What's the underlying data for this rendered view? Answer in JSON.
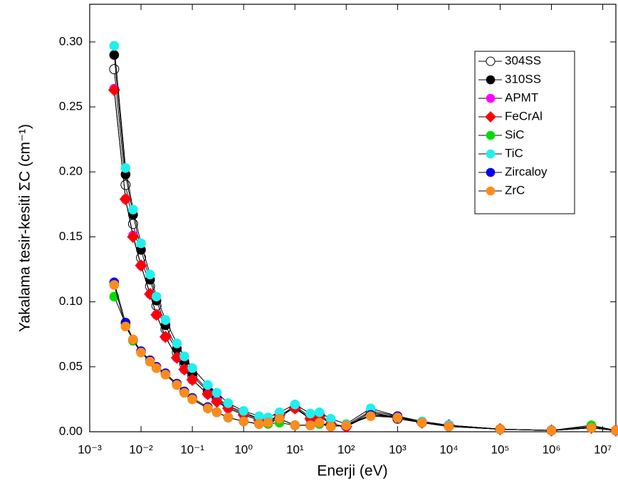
{
  "chart_data": {
    "type": "scatter-line",
    "x_label": "Enerji (eV)",
    "y_label": "Yakalama tesir-kesiti ΣC (cm⁻¹)",
    "log_x": true,
    "xlim": [
      0.001,
      18000000
    ],
    "ylim": [
      0,
      0.329
    ],
    "xticks": [
      {
        "value": 0.001,
        "label": "10⁻³"
      },
      {
        "value": 0.01,
        "label": "10⁻²"
      },
      {
        "value": 0.1,
        "label": "10⁻¹"
      },
      {
        "value": 1,
        "label": "10⁰"
      },
      {
        "value": 10,
        "label": "10¹"
      },
      {
        "value": 100,
        "label": "10²"
      },
      {
        "value": 1000,
        "label": "10³"
      },
      {
        "value": 10000,
        "label": "10⁴"
      },
      {
        "value": 100000,
        "label": "10⁵"
      },
      {
        "value": 1000000,
        "label": "10⁶"
      },
      {
        "value": 10000000,
        "label": "10⁷"
      }
    ],
    "yticks": [
      {
        "value": 0,
        "label": "0.00"
      },
      {
        "value": 0.05,
        "label": "0.05"
      },
      {
        "value": 0.1,
        "label": "0.10"
      },
      {
        "value": 0.15,
        "label": "0.15"
      },
      {
        "value": 0.2,
        "label": "0.20"
      },
      {
        "value": 0.25,
        "label": "0.25"
      },
      {
        "value": 0.3,
        "label": "0.30"
      }
    ],
    "legend": "top-right",
    "line_color": "#000000",
    "x": [
      0.003,
      0.005,
      0.007,
      0.01,
      0.015,
      0.02,
      0.03,
      0.05,
      0.07,
      0.1,
      0.2,
      0.3,
      0.5,
      1,
      2,
      3,
      5,
      10,
      20,
      30,
      50,
      100,
      300,
      1000,
      3000,
      10000,
      100000,
      1000000,
      6000000,
      18000000
    ],
    "series": [
      {
        "name": "304SS",
        "color": "#000000",
        "marker": "open-circle",
        "values": [
          0.279,
          0.19,
          0.16,
          0.134,
          0.112,
          0.097,
          0.079,
          0.061,
          0.052,
          0.043,
          0.031,
          0.025,
          0.019,
          0.014,
          0.01,
          0.008,
          0.011,
          0.019,
          0.01,
          0.014,
          0.006,
          0.004,
          0.015,
          0.01,
          0.007,
          0.005,
          0.002,
          0.001,
          0.004,
          0.001
        ]
      },
      {
        "name": "310SS",
        "color": "#000000",
        "marker": "circle",
        "values": [
          0.29,
          0.198,
          0.167,
          0.14,
          0.117,
          0.101,
          0.082,
          0.064,
          0.054,
          0.045,
          0.032,
          0.026,
          0.02,
          0.015,
          0.01,
          0.008,
          0.012,
          0.02,
          0.011,
          0.014,
          0.006,
          0.004,
          0.015,
          0.011,
          0.007,
          0.005,
          0.002,
          0.001,
          0.004,
          0.001
        ]
      },
      {
        "name": "APMT",
        "color": "#ff00ff",
        "marker": "circle",
        "values": [
          0.264,
          0.179,
          0.151,
          0.128,
          0.106,
          0.09,
          0.073,
          0.057,
          0.048,
          0.04,
          0.029,
          0.024,
          0.018,
          0.013,
          0.009,
          0.008,
          0.013,
          0.018,
          0.01,
          0.012,
          0.006,
          0.004,
          0.013,
          0.011,
          0.007,
          0.005,
          0.002,
          0.001,
          0.003,
          0.001
        ]
      },
      {
        "name": "FeCrAl",
        "color": "#ff0000",
        "marker": "diamond",
        "values": [
          0.263,
          0.179,
          0.15,
          0.128,
          0.106,
          0.09,
          0.073,
          0.057,
          0.048,
          0.04,
          0.029,
          0.023,
          0.018,
          0.013,
          0.009,
          0.008,
          0.013,
          0.018,
          0.01,
          0.012,
          0.006,
          0.004,
          0.013,
          0.011,
          0.007,
          0.005,
          0.002,
          0.001,
          0.003,
          0.001
        ]
      },
      {
        "name": "SiC",
        "color": "#00dd00",
        "marker": "circle",
        "values": [
          0.104,
          0.083,
          0.07,
          0.061,
          0.054,
          0.049,
          0.044,
          0.036,
          0.03,
          0.025,
          0.018,
          0.015,
          0.011,
          0.008,
          0.006,
          0.006,
          0.007,
          0.005,
          0.005,
          0.006,
          0.004,
          0.005,
          0.016,
          0.012,
          0.007,
          0.004,
          0.002,
          0.001,
          0.005,
          0.001
        ]
      },
      {
        "name": "TiC",
        "color": "#22eeee",
        "marker": "circle",
        "values": [
          0.297,
          0.203,
          0.171,
          0.145,
          0.121,
          0.104,
          0.086,
          0.068,
          0.058,
          0.049,
          0.036,
          0.03,
          0.022,
          0.016,
          0.012,
          0.011,
          0.015,
          0.021,
          0.014,
          0.015,
          0.01,
          0.006,
          0.018,
          0.012,
          0.008,
          0.005,
          0.002,
          0.001,
          0.003,
          0.001
        ]
      },
      {
        "name": "Zircaloy",
        "color": "#0000ee",
        "marker": "circle",
        "values": [
          0.115,
          0.084,
          0.071,
          0.062,
          0.055,
          0.05,
          0.045,
          0.037,
          0.031,
          0.026,
          0.019,
          0.015,
          0.011,
          0.008,
          0.006,
          0.007,
          0.01,
          0.005,
          0.005,
          0.007,
          0.004,
          0.005,
          0.013,
          0.012,
          0.007,
          0.004,
          0.002,
          0.001,
          0.003,
          0.001
        ]
      },
      {
        "name": "ZrC",
        "color": "#ff8c1a",
        "marker": "circle",
        "values": [
          0.113,
          0.081,
          0.071,
          0.061,
          0.054,
          0.049,
          0.044,
          0.036,
          0.03,
          0.025,
          0.018,
          0.015,
          0.011,
          0.008,
          0.006,
          0.007,
          0.01,
          0.005,
          0.005,
          0.007,
          0.004,
          0.005,
          0.012,
          0.011,
          0.007,
          0.004,
          0.002,
          0.001,
          0.003,
          0.001
        ]
      }
    ]
  }
}
